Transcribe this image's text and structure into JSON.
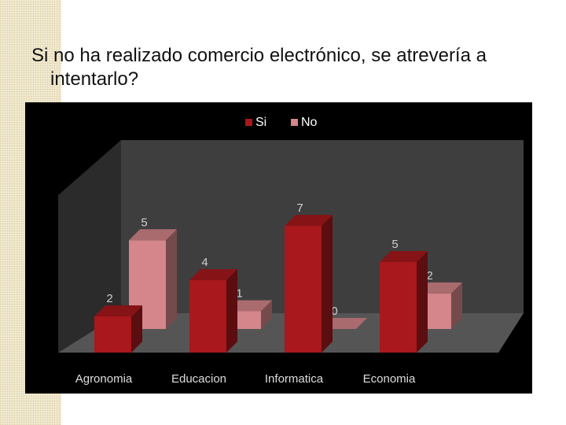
{
  "slide": {
    "title": "Si no ha realizado comercio electrónico, se atrevería a intentarlo?"
  },
  "chart_data": {
    "type": "bar",
    "categories": [
      "Agronomia",
      "Educacion",
      "Informatica",
      "Economia"
    ],
    "series": [
      {
        "name": "Si",
        "values": [
          2,
          4,
          7,
          5
        ],
        "color": "#a8181c"
      },
      {
        "name": "No",
        "values": [
          5,
          1,
          0,
          2
        ],
        "color": "#d4868a"
      }
    ],
    "title": "",
    "xlabel": "",
    "ylabel": "",
    "ylim": [
      0,
      7
    ],
    "legend": "top-center",
    "grid": false,
    "style": "3d-column",
    "background": "#000000"
  }
}
